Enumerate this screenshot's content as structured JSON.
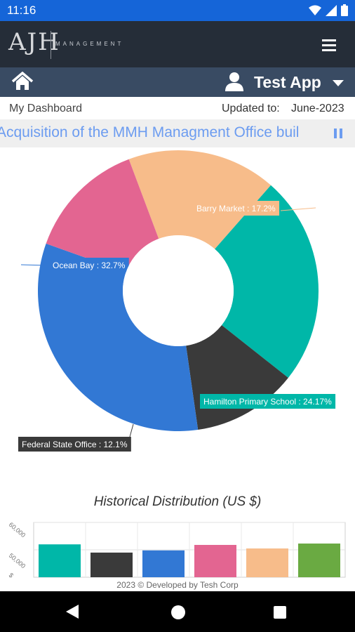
{
  "status_bar": {
    "time": "11:16"
  },
  "header": {
    "logo": "AJH",
    "logo_sub": "MANAGEMENT"
  },
  "nav": {
    "app_name": "Test App"
  },
  "dashboard": {
    "title": "My Dashboard",
    "updated_label": "Updated to:",
    "updated_value": "June-2023"
  },
  "ticker": {
    "text": "Acquisition of the MMH Managment Office buil"
  },
  "chart_data": [
    {
      "type": "pie",
      "donut": true,
      "slices": [
        {
          "label": "Barry Market",
          "value": 17.2,
          "color": "#f7bc8a",
          "display": "Barry Market : 17.2%"
        },
        {
          "label": "Hamilton Primary School",
          "value": 24.17,
          "color": "#00b7a8",
          "display": "Hamilton Primary School : 24.17%"
        },
        {
          "label": "Federal State Office",
          "value": 12.1,
          "color": "#3a3a3a",
          "display": "Federal State Office : 12.1%"
        },
        {
          "label": "Ocean Bay",
          "value": 32.7,
          "color": "#3278d4",
          "display": "Ocean Bay : 32.7%"
        },
        {
          "label": "",
          "value": 13.83,
          "color": "#e36591",
          "display": ""
        }
      ]
    },
    {
      "type": "bar",
      "title": "Historical Distribution (US $)",
      "yticks": [
        "60,000",
        "50,000",
        "$"
      ],
      "values": [
        52000,
        49000,
        49800,
        51800,
        50500,
        52300
      ],
      "colors": [
        "#00b7a8",
        "#3a3a3a",
        "#3278d4",
        "#e36591",
        "#f7bc8a",
        "#6aaa42"
      ]
    }
  ],
  "footer": {
    "text": "2023 © Developed by Tesh Corp"
  }
}
